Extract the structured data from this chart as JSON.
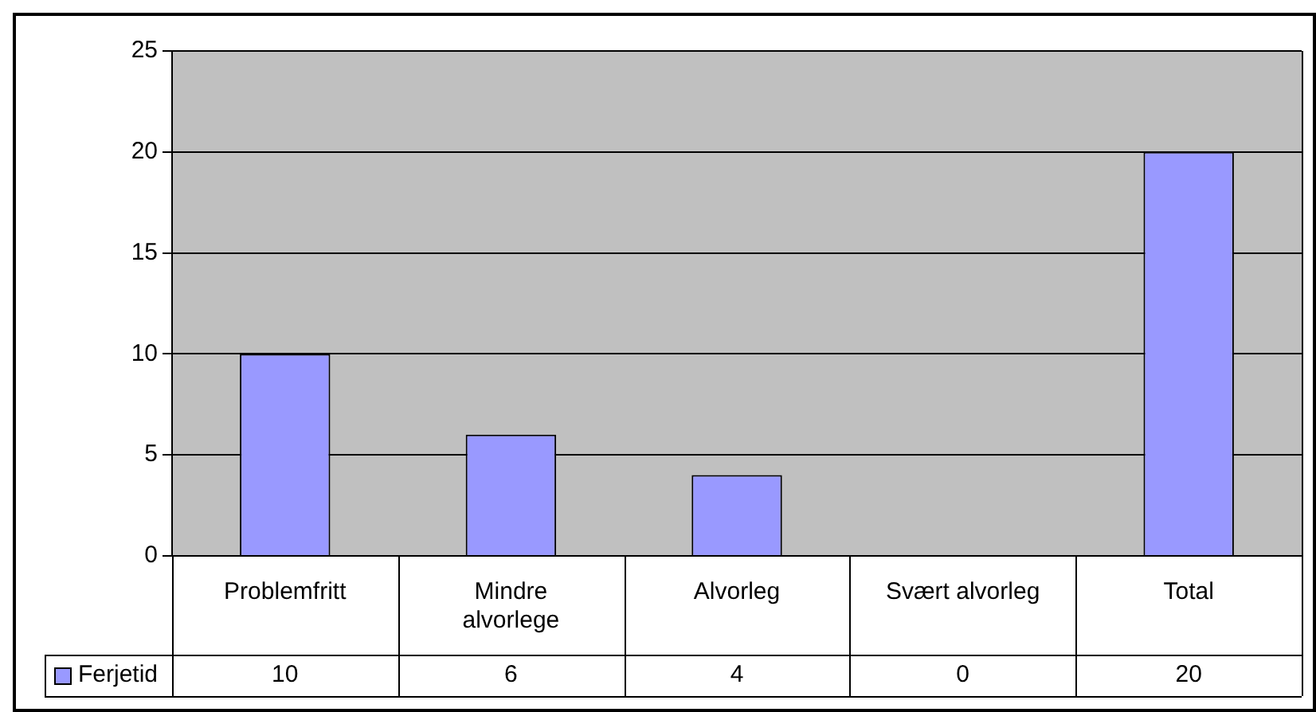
{
  "chart_data": {
    "type": "bar",
    "categories": [
      "Problemfritt",
      "Mindre alvorlege",
      "Alvorleg",
      "Svært alvorleg",
      "Total"
    ],
    "series": [
      {
        "name": "Ferjetid",
        "color": "#9999ff",
        "values": [
          10,
          6,
          4,
          0,
          20
        ]
      }
    ],
    "ylim": [
      0,
      25
    ],
    "yticks": [
      0,
      5,
      10,
      15,
      20,
      25
    ],
    "grid": "y",
    "legend": "bottom left",
    "data_labels": true
  }
}
